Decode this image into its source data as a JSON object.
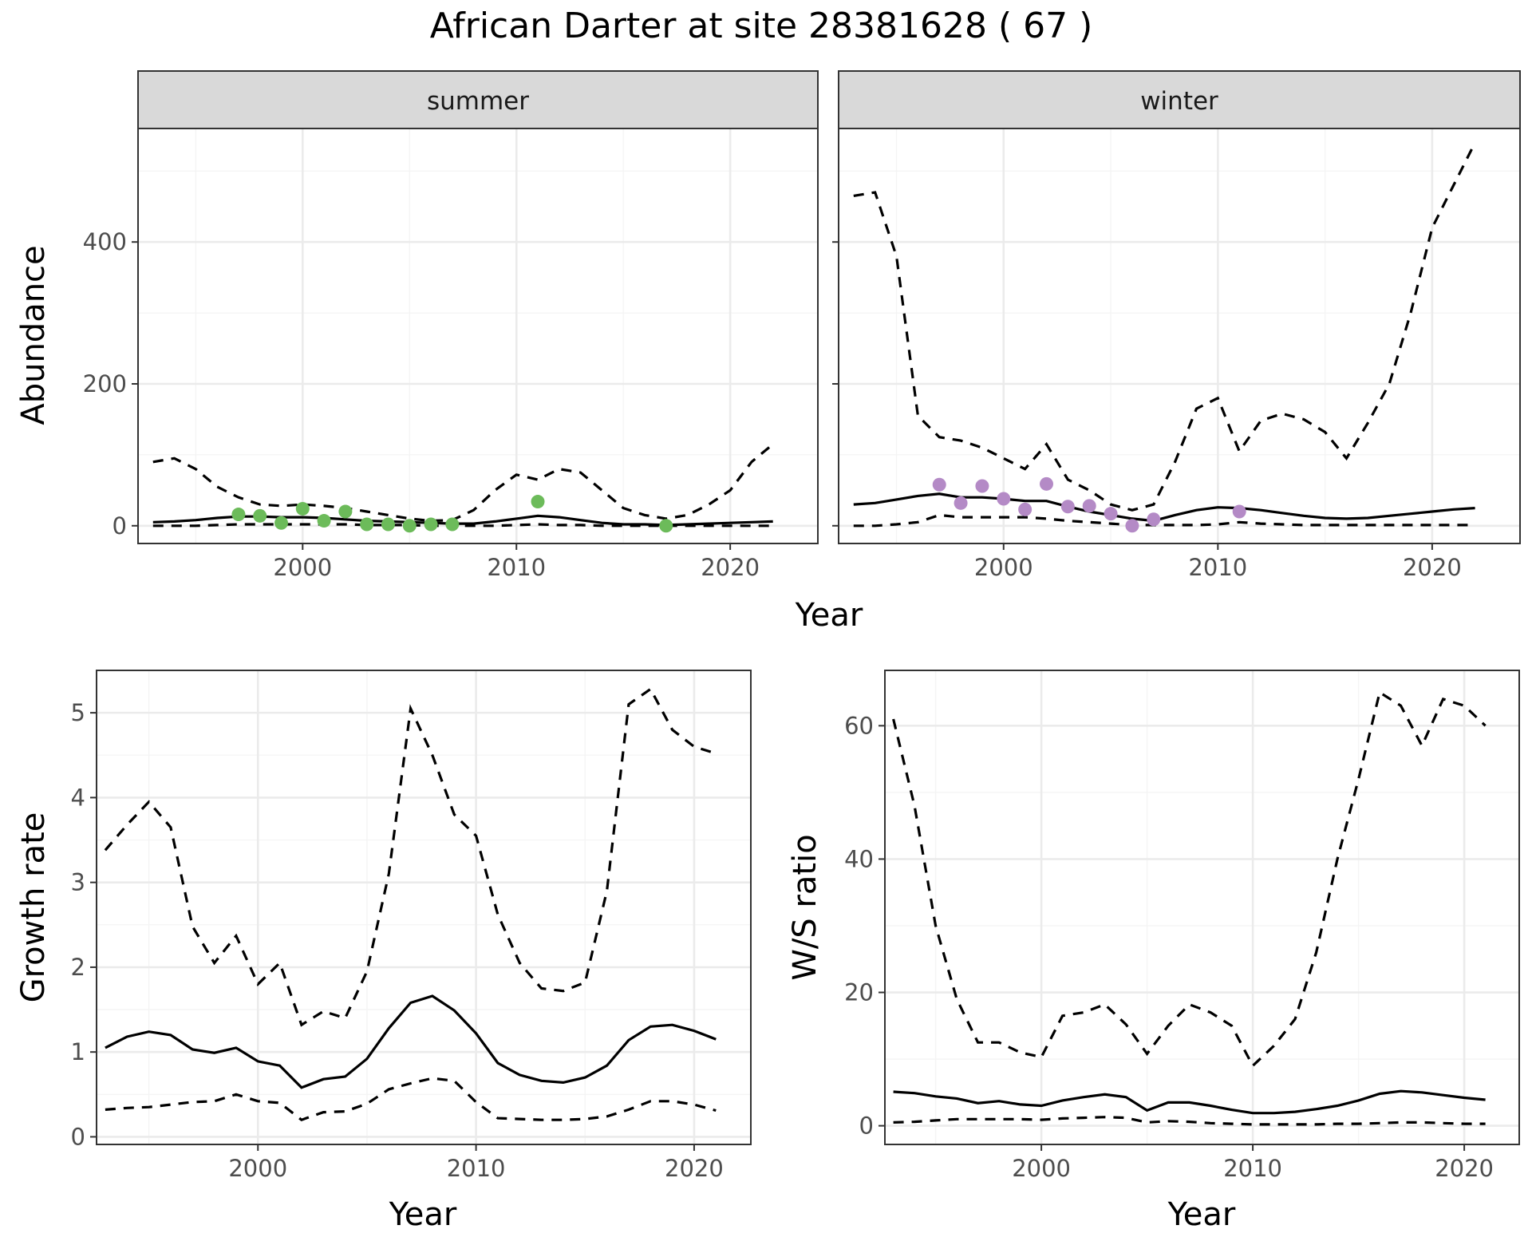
{
  "title": "African Darter at site 28381628 ( 67 )",
  "colors": {
    "summer_points": "#6cbb5a",
    "winter_points": "#b48ac6",
    "lines": "#000000",
    "strip_fill": "#d9d9d9"
  },
  "chart_data": [
    {
      "id": "abundance-summer",
      "type": "line",
      "facet": "summer",
      "xlabel": "Year",
      "ylabel": "Abundance",
      "xlim": [
        1992.3,
        2024.1
      ],
      "ylim": [
        -25,
        560
      ],
      "xticks": [
        2000,
        2010,
        2020
      ],
      "yticks": [
        0,
        200,
        400
      ],
      "x": [
        1993,
        1994,
        1995,
        1996,
        1997,
        1998,
        1999,
        2000,
        2001,
        2002,
        2003,
        2004,
        2005,
        2006,
        2007,
        2008,
        2009,
        2010,
        2011,
        2012,
        2013,
        2014,
        2015,
        2016,
        2017,
        2018,
        2019,
        2020,
        2021,
        2022
      ],
      "series": [
        {
          "style": "solid",
          "values": [
            5,
            6,
            8,
            11,
            13,
            13,
            12,
            12,
            11,
            9,
            7,
            6,
            5,
            4,
            3,
            3,
            6,
            10,
            14,
            12,
            8,
            4,
            2,
            2,
            1,
            2,
            3,
            4,
            5,
            6
          ]
        },
        {
          "style": "dashed",
          "values": [
            90,
            95,
            80,
            55,
            40,
            30,
            28,
            30,
            28,
            25,
            20,
            15,
            10,
            7,
            8,
            22,
            50,
            72,
            65,
            80,
            75,
            50,
            25,
            15,
            10,
            15,
            30,
            50,
            90,
            115
          ]
        },
        {
          "style": "dashed",
          "values": [
            0,
            0,
            0,
            1,
            2,
            2,
            2,
            2,
            2,
            2,
            1,
            1,
            1,
            0,
            0,
            0,
            0,
            1,
            2,
            1,
            1,
            0,
            0,
            0,
            0,
            0,
            0,
            0,
            0,
            0
          ]
        }
      ],
      "points": {
        "x": [
          1997,
          1998,
          1999,
          2000,
          2001,
          2002,
          2003,
          2004,
          2005,
          2006,
          2007,
          2011,
          2017
        ],
        "y": [
          16,
          14,
          4,
          24,
          7,
          20,
          2,
          2,
          0,
          2,
          2,
          34,
          0
        ]
      }
    },
    {
      "id": "abundance-winter",
      "type": "line",
      "facet": "winter",
      "xlabel": "Year",
      "ylabel": "Abundance",
      "xlim": [
        1992.3,
        2024.1
      ],
      "ylim": [
        -25,
        560
      ],
      "xticks": [
        2000,
        2010,
        2020
      ],
      "yticks": [
        0,
        200,
        400
      ],
      "x": [
        1993,
        1994,
        1995,
        1996,
        1997,
        1998,
        1999,
        2000,
        2001,
        2002,
        2003,
        2004,
        2005,
        2006,
        2007,
        2008,
        2009,
        2010,
        2011,
        2012,
        2013,
        2014,
        2015,
        2016,
        2017,
        2018,
        2019,
        2020,
        2021,
        2022
      ],
      "series": [
        {
          "style": "solid",
          "values": [
            30,
            32,
            37,
            42,
            45,
            40,
            40,
            38,
            35,
            35,
            27,
            20,
            15,
            10,
            7,
            15,
            22,
            26,
            25,
            22,
            18,
            14,
            11,
            10,
            11,
            14,
            17,
            20,
            23,
            25
          ]
        },
        {
          "style": "dashed",
          "values": [
            465,
            470,
            380,
            155,
            125,
            120,
            110,
            95,
            80,
            115,
            65,
            50,
            30,
            22,
            30,
            90,
            165,
            180,
            105,
            148,
            158,
            150,
            132,
            95,
            145,
            200,
            300,
            420,
            480,
            540
          ]
        },
        {
          "style": "dashed",
          "values": [
            0,
            0,
            2,
            5,
            15,
            12,
            12,
            12,
            12,
            10,
            7,
            5,
            3,
            1,
            1,
            1,
            1,
            2,
            5,
            3,
            2,
            1,
            1,
            1,
            1,
            1,
            1,
            1,
            1,
            1
          ]
        }
      ],
      "points": {
        "x": [
          1997,
          1998,
          1999,
          2000,
          2001,
          2002,
          2003,
          2004,
          2005,
          2006,
          2007,
          2011
        ],
        "y": [
          58,
          32,
          56,
          38,
          23,
          59,
          27,
          28,
          17,
          0,
          9,
          20
        ]
      }
    },
    {
      "id": "growth-rate",
      "type": "line",
      "xlabel": "Year",
      "ylabel": "Growth rate",
      "xlim": [
        1992.6,
        2022.6
      ],
      "ylim": [
        -0.09,
        5.5
      ],
      "xticks": [
        2000,
        2010,
        2020
      ],
      "yticks": [
        0,
        1,
        2,
        3,
        4,
        5
      ],
      "x": [
        1993,
        1994,
        1995,
        1996,
        1997,
        1998,
        1999,
        2000,
        2001,
        2002,
        2003,
        2004,
        2005,
        2006,
        2007,
        2008,
        2009,
        2010,
        2011,
        2012,
        2013,
        2014,
        2015,
        2016,
        2017,
        2018,
        2019,
        2020,
        2021
      ],
      "series": [
        {
          "style": "solid",
          "values": [
            1.05,
            1.18,
            1.24,
            1.2,
            1.03,
            0.99,
            1.05,
            0.89,
            0.84,
            0.58,
            0.68,
            0.71,
            0.92,
            1.28,
            1.58,
            1.66,
            1.49,
            1.22,
            0.87,
            0.73,
            0.66,
            0.64,
            0.7,
            0.84,
            1.14,
            1.3,
            1.32,
            1.25,
            1.15
          ]
        },
        {
          "style": "dashed",
          "values": [
            3.38,
            3.68,
            3.95,
            3.65,
            2.48,
            2.05,
            2.37,
            1.8,
            2.05,
            1.32,
            1.48,
            1.4,
            1.95,
            3.1,
            5.05,
            4.5,
            3.8,
            3.55,
            2.62,
            2.05,
            1.75,
            1.72,
            1.82,
            2.9,
            5.1,
            5.28,
            4.8,
            4.6,
            4.52
          ]
        },
        {
          "style": "dashed",
          "values": [
            0.32,
            0.34,
            0.35,
            0.38,
            0.41,
            0.42,
            0.5,
            0.42,
            0.4,
            0.2,
            0.29,
            0.3,
            0.39,
            0.56,
            0.63,
            0.69,
            0.66,
            0.41,
            0.22,
            0.21,
            0.2,
            0.2,
            0.21,
            0.24,
            0.32,
            0.42,
            0.42,
            0.38,
            0.31
          ]
        }
      ]
    },
    {
      "id": "ws-ratio",
      "type": "line",
      "xlabel": "Year",
      "ylabel": "W/S ratio",
      "xlim": [
        1992.6,
        2022.6
      ],
      "ylim": [
        -2.8,
        68.3
      ],
      "xticks": [
        2000,
        2010,
        2020
      ],
      "yticks": [
        0,
        20,
        40,
        60
      ],
      "x": [
        1993,
        1994,
        1995,
        1996,
        1997,
        1998,
        1999,
        2000,
        2001,
        2002,
        2003,
        2004,
        2005,
        2006,
        2007,
        2008,
        2009,
        2010,
        2011,
        2012,
        2013,
        2014,
        2015,
        2016,
        2017,
        2018,
        2019,
        2020,
        2021
      ],
      "series": [
        {
          "style": "solid",
          "values": [
            5.1,
            4.9,
            4.4,
            4.1,
            3.4,
            3.7,
            3.2,
            3.0,
            3.8,
            4.3,
            4.7,
            4.3,
            2.3,
            3.5,
            3.5,
            3.0,
            2.4,
            1.9,
            1.9,
            2.1,
            2.5,
            3.0,
            3.8,
            4.8,
            5.2,
            5.0,
            4.6,
            4.2,
            3.9
          ]
        },
        {
          "style": "dashed",
          "values": [
            61,
            48,
            30,
            19,
            12.5,
            12.5,
            11,
            10.3,
            16.5,
            17,
            18.2,
            15.2,
            10.8,
            15,
            18.2,
            17,
            15,
            9,
            12,
            16,
            26,
            40,
            52,
            65,
            63,
            57,
            64,
            63,
            60
          ]
        },
        {
          "style": "dashed",
          "values": [
            0.5,
            0.6,
            0.8,
            1.0,
            1.0,
            1.0,
            1.0,
            0.9,
            1.1,
            1.2,
            1.3,
            1.2,
            0.5,
            0.7,
            0.6,
            0.4,
            0.3,
            0.2,
            0.2,
            0.2,
            0.2,
            0.3,
            0.3,
            0.4,
            0.5,
            0.5,
            0.4,
            0.3,
            0.3
          ]
        }
      ]
    }
  ]
}
